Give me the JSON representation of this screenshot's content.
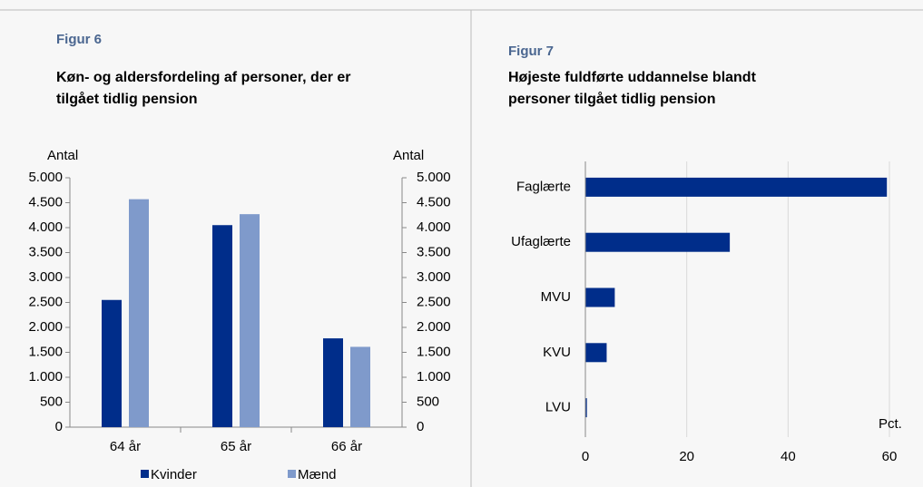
{
  "chart_data": [
    {
      "type": "bar",
      "label": "Figur 6",
      "title": "Køn- og aldersfordeling af personer, der er tilgået tidlig pension",
      "ylabel": "Antal",
      "y2label": "Antal",
      "categories": [
        "64 år",
        "65 år",
        "66 år"
      ],
      "series": [
        {
          "name": "Kvinder",
          "color": "#002d8a",
          "values": [
            2550,
            4050,
            1780
          ]
        },
        {
          "name": "Mænd",
          "color": "#7f9acb",
          "values": [
            4570,
            4270,
            1610
          ]
        }
      ],
      "ylim": [
        0,
        5000
      ],
      "yticks": [
        0,
        500,
        {
          "value": 1000,
          "label": "1.000"
        },
        {
          "value": 1500,
          "label": "1.500"
        },
        {
          "value": 2000,
          "label": "2.000"
        },
        {
          "value": 2500,
          "label": "2.500"
        },
        {
          "value": 3000,
          "label": "3.000"
        },
        {
          "value": 3500,
          "label": "3.500"
        },
        {
          "value": 4000,
          "label": "4.000"
        },
        {
          "value": 4500,
          "label": "4.500"
        },
        {
          "value": 5000,
          "label": "5.000"
        }
      ],
      "y2lim": [
        0,
        5000
      ],
      "y2ticks": [
        0,
        500,
        {
          "value": 1000,
          "label": "1.000"
        },
        {
          "value": 1500,
          "label": "1.500"
        },
        {
          "value": 2000,
          "label": "2.000"
        },
        {
          "value": 2500,
          "label": "2.500"
        },
        {
          "value": 3000,
          "label": "3.000"
        },
        {
          "value": 3500,
          "label": "3.500"
        },
        {
          "value": 4000,
          "label": "4.000"
        },
        {
          "value": 4500,
          "label": "4.500"
        },
        {
          "value": 5000,
          "label": "5.000"
        }
      ],
      "legend": "bottom",
      "grid": false
    },
    {
      "type": "hbar",
      "label": "Figur 7",
      "title": "Højeste fuldførte uddannelse blandt personer tilgået tidlig pension",
      "xlabel": "Pct.",
      "categories": [
        "Faglærte",
        "Ufaglærte",
        "MVU",
        "KVU",
        "LVU"
      ],
      "values": [
        59.5,
        28.5,
        5.8,
        4.2,
        0.3
      ],
      "color": "#002d8a",
      "xlim": [
        0,
        60
      ],
      "xticks": [
        0,
        20,
        40,
        60
      ],
      "grid": true
    }
  ]
}
